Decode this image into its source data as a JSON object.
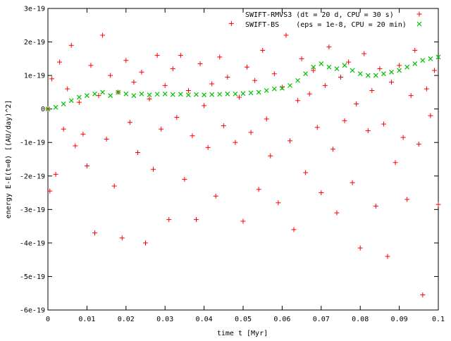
{
  "chart_data": {
    "type": "scatter",
    "title": "",
    "xlabel": "time t [Myr]",
    "ylabel": "energy E-E(t=0) [(AU/day)^2]",
    "xlim": [
      0,
      0.1
    ],
    "ylim": [
      -6e-19,
      3e-19
    ],
    "x_ticks": [
      0,
      0.01,
      0.02,
      0.03,
      0.04,
      0.05,
      0.06,
      0.07,
      0.08,
      0.09,
      0.1
    ],
    "x_tick_labels": [
      "0",
      "0.01",
      "0.02",
      "0.03",
      "0.04",
      "0.05",
      "0.06",
      "0.07",
      "0.08",
      "0.09",
      "0.1"
    ],
    "y_ticks": [
      -6e-19,
      -5e-19,
      -4e-19,
      -3e-19,
      -2e-19,
      -1e-19,
      0,
      1e-19,
      2e-19,
      3e-19
    ],
    "y_tick_labels": [
      "-6e-19",
      "-5e-19",
      "-4e-19",
      "-3e-19",
      "-2e-19",
      "-1e-19",
      "0",
      "1e-19",
      "2e-19",
      "3e-19"
    ],
    "grid": false,
    "legend_position": "top-right",
    "series": [
      {
        "name": "SWIFT-RMVS3 (dt = 20 d, CPU = 30 s)",
        "marker": "plus",
        "color": "#ff0000",
        "x": [
          0.0,
          0.0005,
          0.001,
          0.002,
          0.003,
          0.004,
          0.005,
          0.006,
          0.007,
          0.008,
          0.009,
          0.01,
          0.011,
          0.012,
          0.013,
          0.014,
          0.015,
          0.016,
          0.017,
          0.018,
          0.019,
          0.02,
          0.021,
          0.022,
          0.023,
          0.024,
          0.025,
          0.026,
          0.027,
          0.028,
          0.029,
          0.03,
          0.031,
          0.032,
          0.033,
          0.034,
          0.035,
          0.036,
          0.037,
          0.038,
          0.039,
          0.04,
          0.041,
          0.042,
          0.043,
          0.044,
          0.045,
          0.046,
          0.047,
          0.048,
          0.049,
          0.05,
          0.051,
          0.052,
          0.053,
          0.054,
          0.055,
          0.056,
          0.057,
          0.058,
          0.059,
          0.06,
          0.061,
          0.062,
          0.063,
          0.064,
          0.065,
          0.066,
          0.067,
          0.068,
          0.069,
          0.07,
          0.071,
          0.072,
          0.073,
          0.074,
          0.075,
          0.076,
          0.077,
          0.078,
          0.079,
          0.08,
          0.081,
          0.082,
          0.083,
          0.084,
          0.085,
          0.086,
          0.087,
          0.088,
          0.089,
          0.09,
          0.091,
          0.092,
          0.093,
          0.094,
          0.095,
          0.096,
          0.097,
          0.098,
          0.099,
          0.1
        ],
        "y": [
          0,
          -2.45e-19,
          9e-20,
          -1.95e-19,
          1.4e-19,
          -6e-20,
          6e-20,
          1.9e-19,
          -1.1e-19,
          2e-20,
          -7.5e-20,
          -1.7e-19,
          1.3e-19,
          -3.7e-19,
          4e-20,
          2.2e-19,
          -9e-20,
          1e-19,
          -2.3e-19,
          5e-20,
          -3.85e-19,
          1.45e-19,
          -4e-20,
          8e-20,
          -1.3e-19,
          1.1e-19,
          -4e-19,
          3e-20,
          -1.8e-19,
          1.6e-19,
          -6e-20,
          7e-20,
          -3.3e-19,
          1.2e-19,
          -2.5e-20,
          1.6e-19,
          -2.1e-19,
          5.5e-20,
          -8e-20,
          -3.3e-19,
          1.35e-19,
          1e-20,
          -1.15e-19,
          7.5e-20,
          -2.6e-19,
          1.55e-19,
          -5e-20,
          9.5e-20,
          2.55e-19,
          -1e-19,
          3.5e-20,
          -3.35e-19,
          1.25e-19,
          -7e-20,
          8.5e-20,
          -2.4e-19,
          1.75e-19,
          -3e-20,
          -1.4e-19,
          1.05e-19,
          -2.8e-19,
          6.5e-20,
          2.2e-19,
          -9.5e-20,
          -3.6e-19,
          2.5e-20,
          1.5e-19,
          -1.9e-19,
          4.5e-20,
          1.15e-19,
          -5.5e-20,
          -2.5e-19,
          7e-20,
          1.85e-19,
          -1.2e-19,
          -3.1e-19,
          9.5e-20,
          -3.5e-20,
          1.4e-19,
          -2.2e-19,
          1.5e-20,
          -4.15e-19,
          1.65e-19,
          -6.5e-20,
          5.5e-20,
          -2.9e-19,
          1.2e-19,
          -4.5e-20,
          -4.4e-19,
          8e-20,
          -1.6e-19,
          1.3e-19,
          -8.5e-20,
          -2.7e-19,
          4e-20,
          1.75e-19,
          -1.05e-19,
          -5.55e-19,
          6e-20,
          -2e-20,
          1.15e-19,
          -2.85e-19
        ]
      },
      {
        "name": "SWIFT-BS    (eps = 1e-8, CPU = 20 min)",
        "marker": "x",
        "color": "#00c000",
        "x": [
          0.0,
          0.002,
          0.004,
          0.006,
          0.008,
          0.01,
          0.012,
          0.014,
          0.016,
          0.018,
          0.02,
          0.022,
          0.024,
          0.026,
          0.028,
          0.03,
          0.032,
          0.034,
          0.036,
          0.038,
          0.04,
          0.042,
          0.044,
          0.046,
          0.048,
          0.05,
          0.052,
          0.054,
          0.056,
          0.058,
          0.06,
          0.062,
          0.064,
          0.066,
          0.068,
          0.07,
          0.072,
          0.074,
          0.076,
          0.078,
          0.08,
          0.082,
          0.084,
          0.086,
          0.088,
          0.09,
          0.092,
          0.094,
          0.096,
          0.098,
          0.1
        ],
        "y": [
          0.0,
          5e-21,
          1.5e-20,
          2.5e-20,
          3.5e-20,
          4e-20,
          4.5e-20,
          5e-20,
          4e-20,
          5e-20,
          4.5e-20,
          4e-20,
          4.5e-20,
          4.2e-20,
          4.4e-20,
          4.5e-20,
          4.3e-20,
          4.4e-20,
          4.2e-20,
          4.3e-20,
          4.2e-20,
          4.3e-20,
          4.4e-20,
          4.5e-20,
          4.5e-20,
          4.6e-20,
          4.8e-20,
          5e-20,
          5.5e-20,
          6e-20,
          6.2e-20,
          7e-20,
          8.5e-20,
          1.05e-19,
          1.25e-19,
          1.35e-19,
          1.25e-19,
          1.2e-19,
          1.3e-19,
          1.15e-19,
          1.05e-19,
          1e-19,
          1e-19,
          1.05e-19,
          1.1e-19,
          1.15e-19,
          1.25e-19,
          1.35e-19,
          1.45e-19,
          1.5e-19,
          1.55e-19
        ]
      }
    ]
  }
}
